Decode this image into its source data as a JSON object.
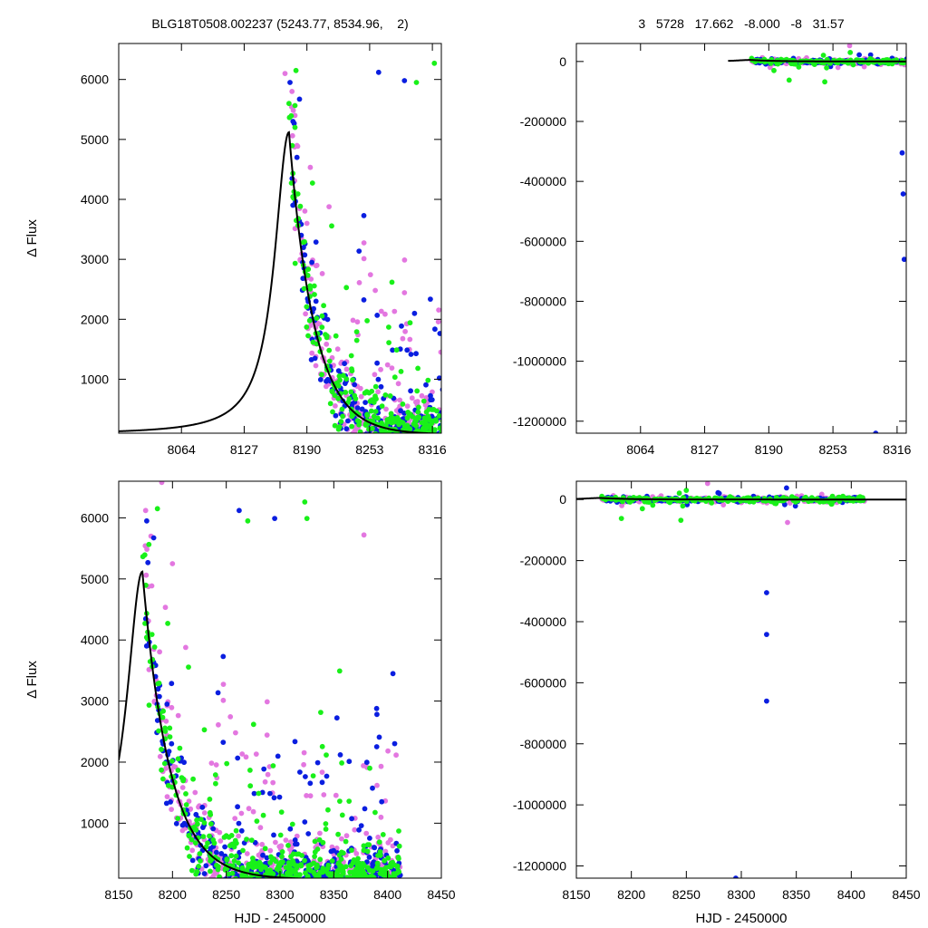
{
  "header": {
    "left_title": "BLG18T0508.002237 (5243.77, 8534.96,    2)",
    "right_title": "3   5728   17.662   -8.000   -8   31.57"
  },
  "colors": {
    "series_pink": "#e377e0",
    "series_blue": "#0a1ee0",
    "series_green": "#19f019",
    "model": "#000000"
  },
  "chart_data": [
    {
      "type": "scatter",
      "panel": "top-left",
      "title": "BLG18T0508.002237 (5243.77, 8534.96,    2)",
      "xlabel": "",
      "ylabel": "Δ Flux",
      "xlim": [
        8001,
        8325
      ],
      "ylim": [
        100,
        6600
      ],
      "xticks": [
        8064,
        8127,
        8190,
        8253,
        8316
      ],
      "yticks": [
        1000,
        2000,
        3000,
        4000,
        5000,
        6000
      ],
      "xtick_labels": [
        "8064",
        "8127",
        "8190",
        "8253",
        "8316"
      ],
      "ytick_labels": [
        "1000",
        "2000",
        "3000",
        "4000",
        "5000",
        "6000"
      ],
      "grid": false,
      "model": {
        "t0": 8172,
        "peak": 5120,
        "rise_days": 17.5,
        "fall_days": 25,
        "baseline": 80
      },
      "series": [
        {
          "color_key": "series_pink",
          "n": 420,
          "seed": 11,
          "extra_points": [
            [
              8168,
              6100
            ],
            [
              8175,
              5800
            ],
            [
              8178,
              5400
            ],
            [
              8180,
              4900
            ],
            [
              8190,
              3600
            ],
            [
              8200,
              2900
            ]
          ]
        },
        {
          "color_key": "series_blue",
          "n": 330,
          "seed": 23,
          "extra_points": [
            [
              8173,
              5950
            ],
            [
              8176,
              5300
            ],
            [
              8262,
              6120
            ],
            [
              8288,
              5980
            ],
            [
              8180,
              4700
            ]
          ]
        },
        {
          "color_key": "series_green",
          "n": 420,
          "seed": 37,
          "extra_points": [
            [
              8179,
              6150
            ],
            [
              8300,
              5950
            ],
            [
              8172,
              5600
            ],
            [
              8318,
              6270
            ],
            [
              8178,
              5200
            ]
          ]
        }
      ]
    },
    {
      "type": "scatter",
      "panel": "top-right",
      "title": "3   5728   17.662   -8.000   -8   31.57",
      "xlabel": "",
      "ylabel": "",
      "xlim": [
        8001,
        8325
      ],
      "ylim": [
        -1240000,
        60000
      ],
      "xticks": [
        8064,
        8127,
        8190,
        8253,
        8316
      ],
      "yticks": [
        0,
        -200000,
        -400000,
        -600000,
        -800000,
        -1000000,
        -1200000
      ],
      "xtick_labels": [
        "8064",
        "8127",
        "8190",
        "8253",
        "8316"
      ],
      "ytick_labels": [
        "0",
        "-200000",
        "-400000",
        "-600000",
        "-800000",
        "-1000000",
        "-1200000"
      ],
      "grid": false,
      "model": {
        "t0": 8172,
        "peak": 5120,
        "rise_days": 17.5,
        "fall_days": 25,
        "baseline": 80
      },
      "series": [
        {
          "color_key": "series_pink",
          "n": 220,
          "seed": 51,
          "extra_points": [
            [
              8258,
              -20000
            ],
            [
              8300,
              -10000
            ]
          ]
        },
        {
          "color_key": "series_blue",
          "n": 150,
          "seed": 63,
          "extra_points": [
            [
              8303,
              68000
            ],
            [
              8290,
              22000
            ],
            [
              8321,
              -305000
            ],
            [
              8322,
              -442000
            ],
            [
              8323,
              -660000
            ],
            [
              8295,
              -1240000
            ]
          ]
        },
        {
          "color_key": "series_green",
          "n": 220,
          "seed": 77,
          "extra_points": [
            [
              8210,
              -62000
            ],
            [
              8245,
              -68000
            ],
            [
              8195,
              -30000
            ],
            [
              8270,
              30000
            ]
          ]
        }
      ]
    },
    {
      "type": "scatter",
      "panel": "bottom-left",
      "title": "",
      "xlabel": "HJD - 2450000",
      "ylabel": "Δ Flux",
      "xlim": [
        8150,
        8450
      ],
      "ylim": [
        100,
        6600
      ],
      "xticks": [
        8150,
        8200,
        8250,
        8300,
        8350,
        8400,
        8450
      ],
      "yticks": [
        1000,
        2000,
        3000,
        4000,
        5000,
        6000
      ],
      "xtick_labels": [
        "8150",
        "8200",
        "8250",
        "8300",
        "8350",
        "8400",
        "8450"
      ],
      "ytick_labels": [
        "1000",
        "2000",
        "3000",
        "4000",
        "5000",
        "6000"
      ],
      "grid": false,
      "model": {
        "t0": 8172,
        "peak": 5120,
        "rise_days": 17.5,
        "fall_days": 25,
        "baseline": 80
      },
      "series": [
        {
          "color_key": "series_pink",
          "n": 420,
          "seed": 11,
          "extra_points": [
            [
              8190,
              6580
            ],
            [
              8175,
              6120
            ],
            [
              8180,
              5700
            ],
            [
              8378,
              5720
            ],
            [
              8200,
              5250
            ]
          ]
        },
        {
          "color_key": "series_blue",
          "n": 330,
          "seed": 23,
          "extra_points": [
            [
              8176,
              5950
            ],
            [
              8262,
              6120
            ],
            [
              8295,
              5990
            ],
            [
              8405,
              3450
            ]
          ]
        },
        {
          "color_key": "series_green",
          "n": 420,
          "seed": 37,
          "extra_points": [
            [
              8186,
              6150
            ],
            [
              8323,
              6260
            ],
            [
              8270,
              5950
            ],
            [
              8325,
              5990
            ]
          ]
        }
      ]
    },
    {
      "type": "scatter",
      "panel": "bottom-right",
      "title": "",
      "xlabel": "HJD - 2450000",
      "ylabel": "",
      "xlim": [
        8150,
        8450
      ],
      "ylim": [
        -1240000,
        60000
      ],
      "xticks": [
        8150,
        8200,
        8250,
        8300,
        8350,
        8400,
        8450
      ],
      "yticks": [
        0,
        -200000,
        -400000,
        -600000,
        -800000,
        -1000000,
        -1200000
      ],
      "xtick_labels": [
        "8150",
        "8200",
        "8250",
        "8300",
        "8350",
        "8400",
        "8450"
      ],
      "ytick_labels": [
        "0",
        "-200000",
        "-400000",
        "-600000",
        "-800000",
        "-1000000",
        "-1200000"
      ],
      "grid": false,
      "model": {
        "t0": 8172,
        "peak": 5120,
        "rise_days": 17.5,
        "fall_days": 25,
        "baseline": 80
      },
      "series": [
        {
          "color_key": "series_pink",
          "n": 220,
          "seed": 51,
          "extra_points": [
            [
              8342,
              -75000
            ],
            [
              8300,
              -10000
            ]
          ]
        },
        {
          "color_key": "series_blue",
          "n": 150,
          "seed": 63,
          "extra_points": [
            [
              8292,
              68000
            ],
            [
              8280,
              20000
            ],
            [
              8323,
              -305000
            ],
            [
              8323,
              -442000
            ],
            [
              8323,
              -660000
            ],
            [
              8295,
              -1240000
            ]
          ]
        },
        {
          "color_key": "series_green",
          "n": 220,
          "seed": 77,
          "extra_points": [
            [
              8191,
              -62000
            ],
            [
              8245,
              -68000
            ],
            [
              8210,
              -30000
            ],
            [
              8250,
              30000
            ]
          ]
        }
      ]
    }
  ]
}
